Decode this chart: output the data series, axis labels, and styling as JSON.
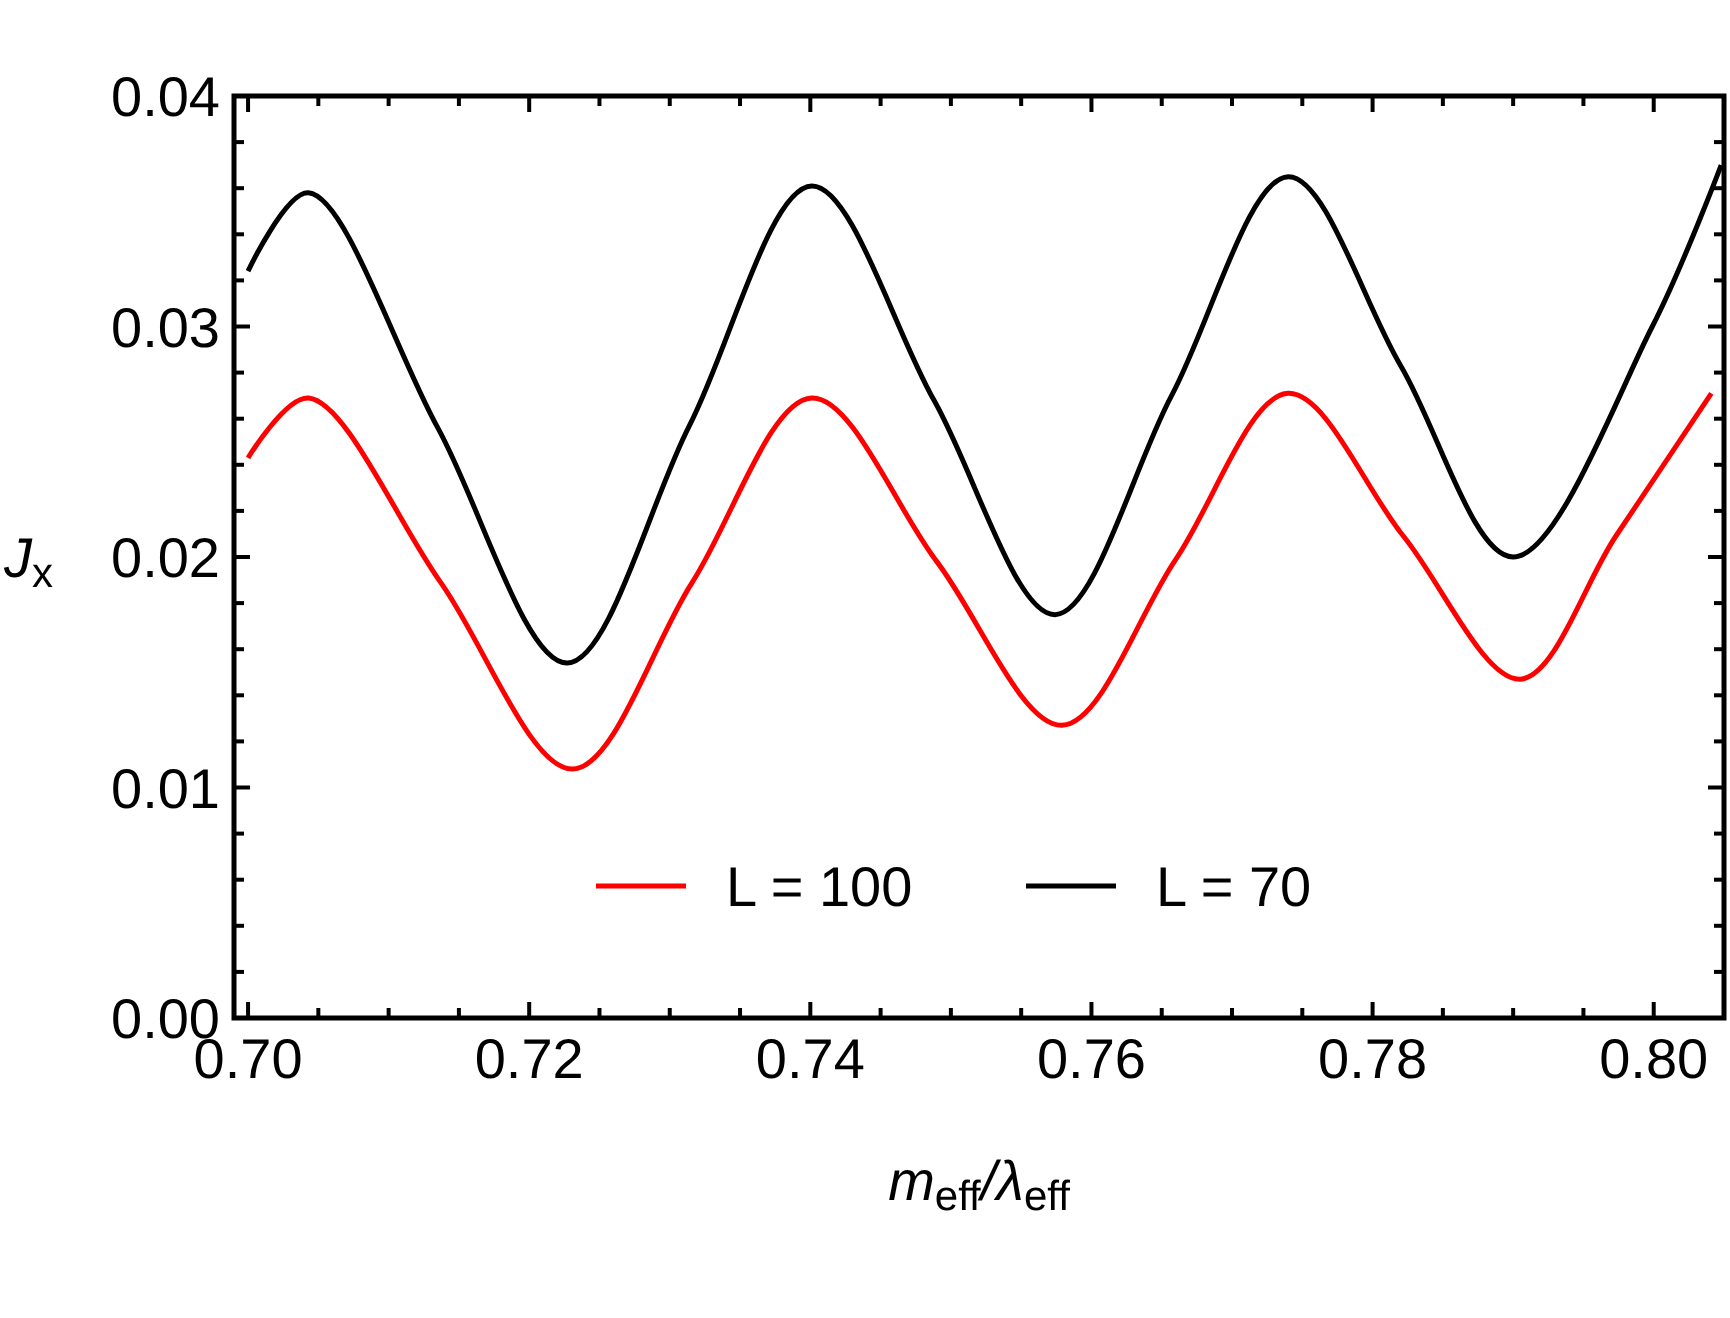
{
  "chart_data": {
    "type": "line",
    "xlabel": "m$_{eff}$/λ$_{eff}$",
    "ylabel": "J$_{x}$",
    "xlim": [
      0.699,
      0.805
    ],
    "ylim": [
      0,
      0.04
    ],
    "xticks": [
      {
        "value": 0.7,
        "label": "0.70"
      },
      {
        "value": 0.705,
        "label": null
      },
      {
        "value": 0.71,
        "label": null
      },
      {
        "value": 0.715,
        "label": null
      },
      {
        "value": 0.72,
        "label": "0.72"
      },
      {
        "value": 0.725,
        "label": null
      },
      {
        "value": 0.73,
        "label": null
      },
      {
        "value": 0.735,
        "label": null
      },
      {
        "value": 0.74,
        "label": "0.74"
      },
      {
        "value": 0.745,
        "label": null
      },
      {
        "value": 0.75,
        "label": null
      },
      {
        "value": 0.755,
        "label": null
      },
      {
        "value": 0.76,
        "label": "0.76"
      },
      {
        "value": 0.765,
        "label": null
      },
      {
        "value": 0.77,
        "label": null
      },
      {
        "value": 0.775,
        "label": null
      },
      {
        "value": 0.78,
        "label": "0.78"
      },
      {
        "value": 0.785,
        "label": null
      },
      {
        "value": 0.79,
        "label": null
      },
      {
        "value": 0.795,
        "label": null
      },
      {
        "value": 0.8,
        "label": "0.80"
      }
    ],
    "yticks": [
      {
        "value": 0,
        "label": "0.00"
      },
      {
        "value": 0.002,
        "label": null
      },
      {
        "value": 0.004,
        "label": null
      },
      {
        "value": 0.006,
        "label": null
      },
      {
        "value": 0.008,
        "label": null
      },
      {
        "value": 0.01,
        "label": "0.01"
      },
      {
        "value": 0.012,
        "label": null
      },
      {
        "value": 0.014,
        "label": null
      },
      {
        "value": 0.016,
        "label": null
      },
      {
        "value": 0.018,
        "label": null
      },
      {
        "value": 0.02,
        "label": "0.02"
      },
      {
        "value": 0.022,
        "label": null
      },
      {
        "value": 0.024,
        "label": null
      },
      {
        "value": 0.026,
        "label": null
      },
      {
        "value": 0.028,
        "label": null
      },
      {
        "value": 0.03,
        "label": "0.03"
      },
      {
        "value": 0.032,
        "label": null
      },
      {
        "value": 0.034,
        "label": null
      },
      {
        "value": 0.036,
        "label": null
      },
      {
        "value": 0.038,
        "label": null
      },
      {
        "value": 0.04,
        "label": "0.04"
      }
    ],
    "grid": false,
    "legend": "bottom",
    "marker": "none",
    "line_style": "solid",
    "series": [
      {
        "name": "L = 100",
        "color": "#ff0000",
        "x": [
          0.7,
          0.7043,
          0.7137,
          0.7231,
          0.7316,
          0.7401,
          0.749,
          0.7579,
          0.766,
          0.774,
          0.7822,
          0.7905,
          0.7973,
          0.8041
        ],
        "values": [
          0.0243,
          0.0269,
          0.0189,
          0.0108,
          0.0189,
          0.0269,
          0.0198,
          0.0127,
          0.0199,
          0.0271,
          0.0209,
          0.0147,
          0.0209,
          0.0271
        ]
      },
      {
        "name": "L = 70",
        "color": "#000000",
        "x": [
          0.7,
          0.7043,
          0.7135,
          0.7227,
          0.7314,
          0.7401,
          0.7488,
          0.7574,
          0.7657,
          0.774,
          0.782,
          0.79,
          0.7999,
          0.8048
        ],
        "values": [
          0.0324,
          0.0358,
          0.0256,
          0.0154,
          0.0257,
          0.0361,
          0.0268,
          0.0175,
          0.027,
          0.0365,
          0.0283,
          0.02,
          0.03,
          0.037
        ]
      }
    ]
  }
}
